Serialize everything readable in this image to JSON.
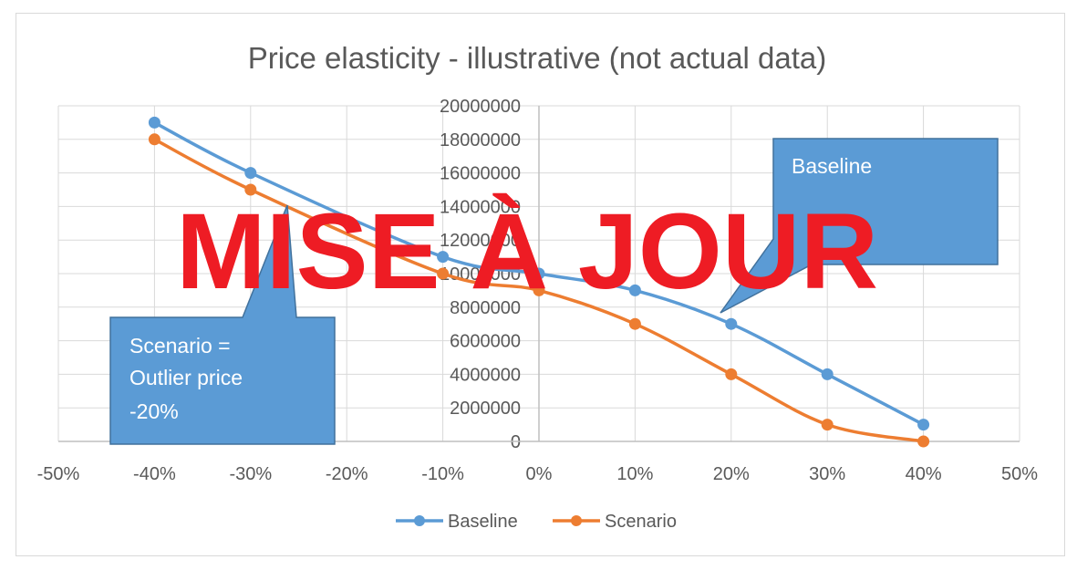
{
  "chart_data": {
    "type": "line",
    "title": "Price elasticity - illustrative (not actual data)",
    "xlim": [
      -0.5,
      0.5
    ],
    "ylim": [
      0,
      20000000
    ],
    "x_ticks": [
      "-50%",
      "-40%",
      "-30%",
      "-20%",
      "-10%",
      "0%",
      "10%",
      "20%",
      "30%",
      "40%",
      "50%"
    ],
    "y_ticks": [
      "0",
      "2000000",
      "4000000",
      "6000000",
      "8000000",
      "10000000",
      "12000000",
      "14000000",
      "16000000",
      "18000000",
      "20000000"
    ],
    "grid": true,
    "legend_position": "bottom",
    "smooth": true,
    "series": [
      {
        "name": "Baseline",
        "color": "#5b9bd5",
        "points": [
          {
            "x": -0.4,
            "y": 19000000
          },
          {
            "x": -0.3,
            "y": 16000000
          },
          {
            "x": -0.1,
            "y": 11000000
          },
          {
            "x": 0.0,
            "y": 10000000
          },
          {
            "x": 0.1,
            "y": 9000000
          },
          {
            "x": 0.2,
            "y": 7000000
          },
          {
            "x": 0.3,
            "y": 4000000
          },
          {
            "x": 0.4,
            "y": 1000000
          }
        ]
      },
      {
        "name": "Scenario",
        "color": "#ed7d31",
        "points": [
          {
            "x": -0.4,
            "y": 18000000
          },
          {
            "x": -0.3,
            "y": 15000000
          },
          {
            "x": -0.1,
            "y": 10000000
          },
          {
            "x": 0.0,
            "y": 9000000
          },
          {
            "x": 0.1,
            "y": 7000000
          },
          {
            "x": 0.2,
            "y": 4000000
          },
          {
            "x": 0.3,
            "y": 1000000
          },
          {
            "x": 0.4,
            "y": 0
          }
        ]
      }
    ],
    "annotations": [
      {
        "id": "callout-baseline",
        "lines": [
          "Baseline"
        ],
        "color": "#5b9bd5"
      },
      {
        "id": "callout-scenario",
        "lines": [
          "Scenario =",
          "Outlier price",
          "-20%"
        ],
        "color": "#5b9bd5"
      }
    ]
  },
  "overlay": {
    "stamp_text": "MISE À JOUR",
    "stamp_color": "#ee1c24"
  }
}
